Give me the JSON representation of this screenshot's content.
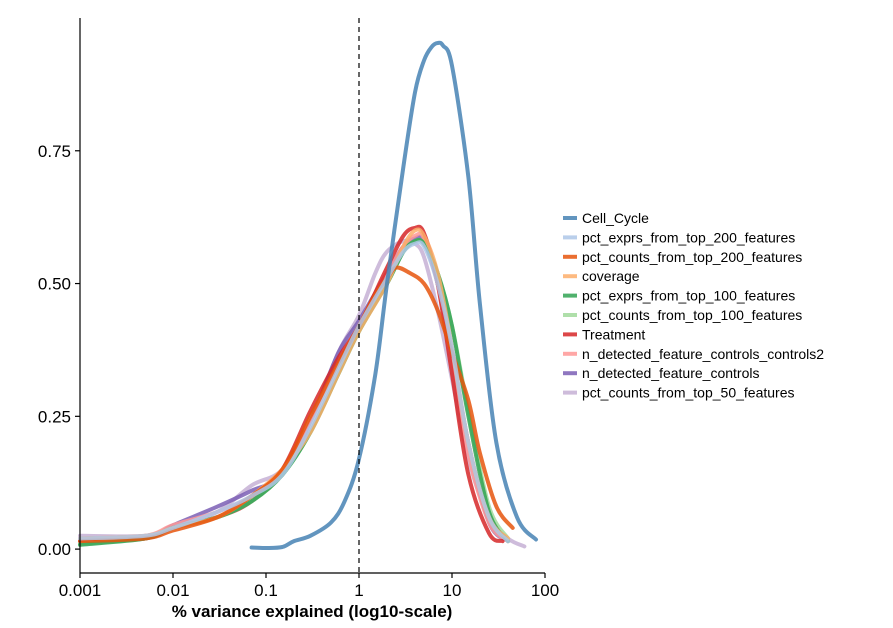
{
  "chart_data": {
    "type": "line",
    "title": "",
    "xlabel": "% variance explained (log10-scale)",
    "ylabel": "",
    "x_scale": "log10",
    "xlim": [
      0.001,
      100
    ],
    "ylim": [
      -0.045,
      1.0
    ],
    "x_ticks": [
      {
        "value": 0.001,
        "label": "0.001"
      },
      {
        "value": 0.01,
        "label": "0.01"
      },
      {
        "value": 0.1,
        "label": "0.1"
      },
      {
        "value": 1,
        "label": "1"
      },
      {
        "value": 10,
        "label": "10"
      },
      {
        "value": 100,
        "label": "100"
      }
    ],
    "y_ticks": [
      {
        "value": 0,
        "label": "0.00"
      },
      {
        "value": 0.25,
        "label": "0.25"
      },
      {
        "value": 0.5,
        "label": "0.50"
      },
      {
        "value": 0.75,
        "label": "0.75"
      }
    ],
    "reference_line": {
      "x": 1,
      "style": "dashed"
    },
    "grid": false,
    "legend_position": "right",
    "series": [
      {
        "name": "Cell_Cycle",
        "color": "#4682b4",
        "points": [
          [
            0.07,
            0.003
          ],
          [
            0.1,
            0.002
          ],
          [
            0.15,
            0.004
          ],
          [
            0.2,
            0.015
          ],
          [
            0.3,
            0.025
          ],
          [
            0.5,
            0.05
          ],
          [
            0.7,
            0.09
          ],
          [
            1,
            0.17
          ],
          [
            1.5,
            0.33
          ],
          [
            2,
            0.5
          ],
          [
            3,
            0.72
          ],
          [
            4,
            0.86
          ],
          [
            5,
            0.92
          ],
          [
            6,
            0.945
          ],
          [
            7,
            0.953
          ],
          [
            8,
            0.948
          ],
          [
            10,
            0.91
          ],
          [
            15,
            0.7
          ],
          [
            20,
            0.46
          ],
          [
            30,
            0.2
          ],
          [
            50,
            0.06
          ],
          [
            80,
            0.018
          ]
        ]
      },
      {
        "name": "pct_exprs_from_top_200_features",
        "color": "#aec7e8",
        "points": [
          [
            0.001,
            0.02
          ],
          [
            0.005,
            0.025
          ],
          [
            0.01,
            0.04
          ],
          [
            0.03,
            0.07
          ],
          [
            0.07,
            0.1
          ],
          [
            0.15,
            0.14
          ],
          [
            0.3,
            0.23
          ],
          [
            0.6,
            0.34
          ],
          [
            1,
            0.42
          ],
          [
            2,
            0.51
          ],
          [
            3,
            0.56
          ],
          [
            4,
            0.575
          ],
          [
            5,
            0.57
          ],
          [
            7,
            0.5
          ],
          [
            10,
            0.38
          ],
          [
            15,
            0.2
          ],
          [
            25,
            0.06
          ],
          [
            40,
            0.015
          ]
        ]
      },
      {
        "name": "pct_counts_from_top_200_features",
        "color": "#e6550d",
        "points": [
          [
            0.001,
            0.015
          ],
          [
            0.005,
            0.02
          ],
          [
            0.01,
            0.035
          ],
          [
            0.03,
            0.06
          ],
          [
            0.07,
            0.1
          ],
          [
            0.15,
            0.15
          ],
          [
            0.3,
            0.25
          ],
          [
            0.6,
            0.35
          ],
          [
            1,
            0.42
          ],
          [
            1.5,
            0.48
          ],
          [
            2,
            0.51
          ],
          [
            2.5,
            0.53
          ],
          [
            3.5,
            0.52
          ],
          [
            5,
            0.5
          ],
          [
            7,
            0.45
          ],
          [
            10,
            0.37
          ],
          [
            15,
            0.28
          ],
          [
            20,
            0.18
          ],
          [
            30,
            0.08
          ],
          [
            45,
            0.04
          ]
        ]
      },
      {
        "name": "coverage",
        "color": "#fdae6b",
        "points": [
          [
            0.001,
            0.02
          ],
          [
            0.005,
            0.025
          ],
          [
            0.01,
            0.04
          ],
          [
            0.03,
            0.06
          ],
          [
            0.07,
            0.1
          ],
          [
            0.15,
            0.15
          ],
          [
            0.3,
            0.22
          ],
          [
            0.6,
            0.33
          ],
          [
            1,
            0.41
          ],
          [
            2,
            0.5
          ],
          [
            3,
            0.57
          ],
          [
            4,
            0.6
          ],
          [
            5,
            0.59
          ],
          [
            7,
            0.52
          ],
          [
            10,
            0.38
          ],
          [
            15,
            0.2
          ],
          [
            25,
            0.06
          ],
          [
            40,
            0.02
          ]
        ]
      },
      {
        "name": "pct_exprs_from_top_100_features",
        "color": "#31a354",
        "points": [
          [
            0.001,
            0.008
          ],
          [
            0.005,
            0.02
          ],
          [
            0.01,
            0.04
          ],
          [
            0.03,
            0.06
          ],
          [
            0.07,
            0.09
          ],
          [
            0.15,
            0.14
          ],
          [
            0.3,
            0.22
          ],
          [
            0.6,
            0.33
          ],
          [
            1,
            0.41
          ],
          [
            2,
            0.5
          ],
          [
            3,
            0.56
          ],
          [
            4,
            0.58
          ],
          [
            5,
            0.575
          ],
          [
            7,
            0.52
          ],
          [
            10,
            0.42
          ],
          [
            15,
            0.25
          ],
          [
            25,
            0.07
          ],
          [
            40,
            0.015
          ]
        ]
      },
      {
        "name": "pct_counts_from_top_100_features",
        "color": "#a1d99b",
        "points": [
          [
            0.001,
            0.01
          ],
          [
            0.005,
            0.02
          ],
          [
            0.01,
            0.04
          ],
          [
            0.03,
            0.06
          ],
          [
            0.07,
            0.09
          ],
          [
            0.15,
            0.14
          ],
          [
            0.3,
            0.22
          ],
          [
            0.6,
            0.33
          ],
          [
            1,
            0.41
          ],
          [
            2,
            0.5
          ],
          [
            3,
            0.56
          ],
          [
            4,
            0.58
          ],
          [
            5,
            0.575
          ],
          [
            7,
            0.52
          ],
          [
            10,
            0.42
          ],
          [
            15,
            0.26
          ],
          [
            25,
            0.08
          ],
          [
            40,
            0.02
          ]
        ]
      },
      {
        "name": "Treatment",
        "color": "#d62728",
        "points": [
          [
            0.001,
            0.015
          ],
          [
            0.005,
            0.02
          ],
          [
            0.01,
            0.04
          ],
          [
            0.03,
            0.06
          ],
          [
            0.07,
            0.09
          ],
          [
            0.15,
            0.15
          ],
          [
            0.3,
            0.26
          ],
          [
            0.6,
            0.36
          ],
          [
            1,
            0.42
          ],
          [
            2,
            0.53
          ],
          [
            3,
            0.59
          ],
          [
            4,
            0.605
          ],
          [
            5,
            0.595
          ],
          [
            7,
            0.5
          ],
          [
            10,
            0.33
          ],
          [
            15,
            0.14
          ],
          [
            25,
            0.03
          ],
          [
            35,
            0.015
          ]
        ]
      },
      {
        "name": "n_detected_feature_controls_controls2",
        "color": "#ff9896",
        "points": [
          [
            0.001,
            0.02
          ],
          [
            0.005,
            0.025
          ],
          [
            0.01,
            0.045
          ],
          [
            0.03,
            0.07
          ],
          [
            0.07,
            0.1
          ],
          [
            0.15,
            0.15
          ],
          [
            0.3,
            0.24
          ],
          [
            0.6,
            0.35
          ],
          [
            1,
            0.42
          ],
          [
            2,
            0.52
          ],
          [
            3,
            0.57
          ],
          [
            4,
            0.59
          ],
          [
            5,
            0.585
          ],
          [
            7,
            0.5
          ],
          [
            10,
            0.36
          ],
          [
            15,
            0.18
          ],
          [
            25,
            0.05
          ],
          [
            40,
            0.015
          ]
        ]
      },
      {
        "name": "n_detected_feature_controls",
        "color": "#7b5fb5",
        "points": [
          [
            0.001,
            0.015
          ],
          [
            0.005,
            0.02
          ],
          [
            0.01,
            0.045
          ],
          [
            0.03,
            0.08
          ],
          [
            0.07,
            0.11
          ],
          [
            0.15,
            0.14
          ],
          [
            0.3,
            0.24
          ],
          [
            0.6,
            0.37
          ],
          [
            1,
            0.43
          ],
          [
            2,
            0.52
          ],
          [
            3,
            0.57
          ],
          [
            4,
            0.585
          ],
          [
            5,
            0.58
          ],
          [
            7,
            0.5
          ],
          [
            10,
            0.37
          ],
          [
            15,
            0.2
          ],
          [
            25,
            0.05
          ],
          [
            40,
            0.015
          ]
        ]
      },
      {
        "name": "pct_counts_from_top_50_features",
        "color": "#c5b0d5",
        "points": [
          [
            0.001,
            0.025
          ],
          [
            0.005,
            0.025
          ],
          [
            0.01,
            0.04
          ],
          [
            0.03,
            0.07
          ],
          [
            0.07,
            0.12
          ],
          [
            0.15,
            0.15
          ],
          [
            0.3,
            0.24
          ],
          [
            0.6,
            0.37
          ],
          [
            1,
            0.44
          ],
          [
            1.5,
            0.52
          ],
          [
            2,
            0.56
          ],
          [
            3,
            0.58
          ],
          [
            4,
            0.575
          ],
          [
            5,
            0.55
          ],
          [
            7,
            0.45
          ],
          [
            10,
            0.32
          ],
          [
            15,
            0.17
          ],
          [
            25,
            0.06
          ],
          [
            40,
            0.02
          ],
          [
            60,
            0.005
          ]
        ]
      }
    ]
  }
}
